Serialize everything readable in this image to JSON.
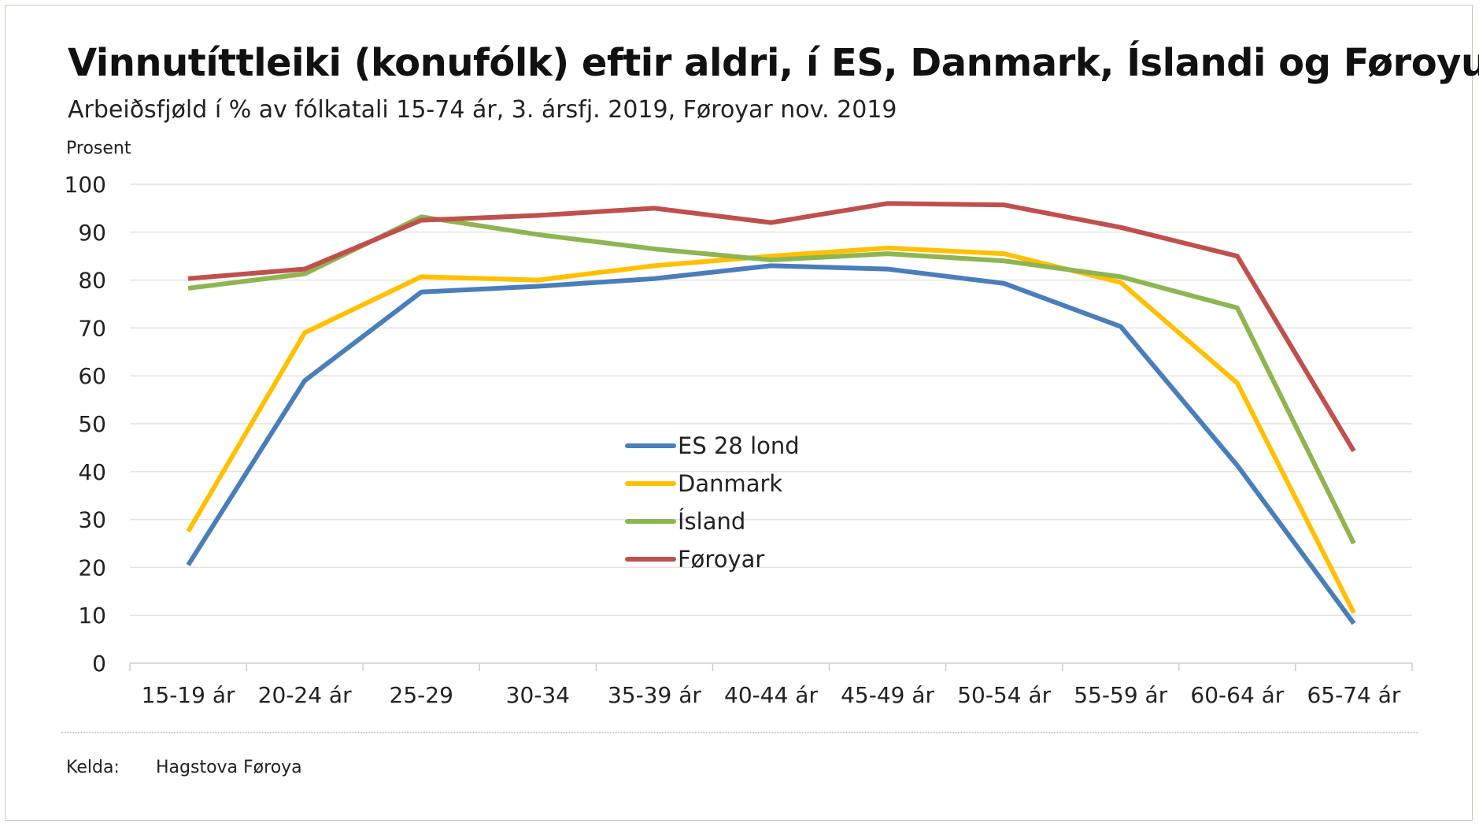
{
  "header": {
    "title": "Vinnutíttleiki (konufólk) eftir aldri, í ES, Danmark, Íslandi og Føroyum",
    "subtitle": "Arbeiðsfjøld í % av fólkatali 15-74 ár, 3. ársfj. 2019, Føroyar nov. 2019"
  },
  "footer": {
    "source_label": "Kelda:",
    "source_value": "Hagstova Føroya"
  },
  "chart_data": {
    "type": "line",
    "title": "Vinnutíttleiki (konufólk) eftir aldri, í ES, Danmark, Íslandi og Føroyum",
    "subtitle": "Arbeiðsfjøld í % av fólkatali 15-74 ár, 3. ársfj. 2019, Føroyar nov. 2019",
    "ylabel": "Prosent",
    "xlabel": "",
    "ylim": [
      0,
      100
    ],
    "yticks": [
      0,
      10,
      20,
      30,
      40,
      50,
      60,
      70,
      80,
      90,
      100
    ],
    "grid": true,
    "legend_position": "center",
    "categories": [
      "15-19 ár",
      "20-24 ár",
      "25-29",
      "30-34",
      "35-39 ár",
      "40-44 ár",
      "45-49 ár",
      "50-54 ár",
      "55-59 ár",
      "60-64 ár",
      "65-74 ár"
    ],
    "series": [
      {
        "name": "ES 28 lond",
        "color": "#4a7ebb",
        "values": [
          20.5,
          59,
          77.5,
          78.7,
          80.3,
          83,
          82.3,
          79.3,
          70.3,
          41.3,
          8.3
        ]
      },
      {
        "name": "Danmark",
        "color": "#ffc000",
        "values": [
          27.5,
          69,
          80.7,
          80,
          83,
          85,
          86.7,
          85.5,
          79.5,
          58.5,
          10.5
        ]
      },
      {
        "name": "Ísland",
        "color": "#8db551",
        "values": [
          78.3,
          81.3,
          93.2,
          89.5,
          86.5,
          84.2,
          85.5,
          84,
          80.7,
          74.2,
          25
        ]
      },
      {
        "name": "Føroyar",
        "color": "#c0504d",
        "values": [
          80.3,
          82.3,
          92.5,
          93.5,
          95,
          92,
          96,
          95.7,
          91,
          85,
          44.3
        ]
      }
    ]
  }
}
